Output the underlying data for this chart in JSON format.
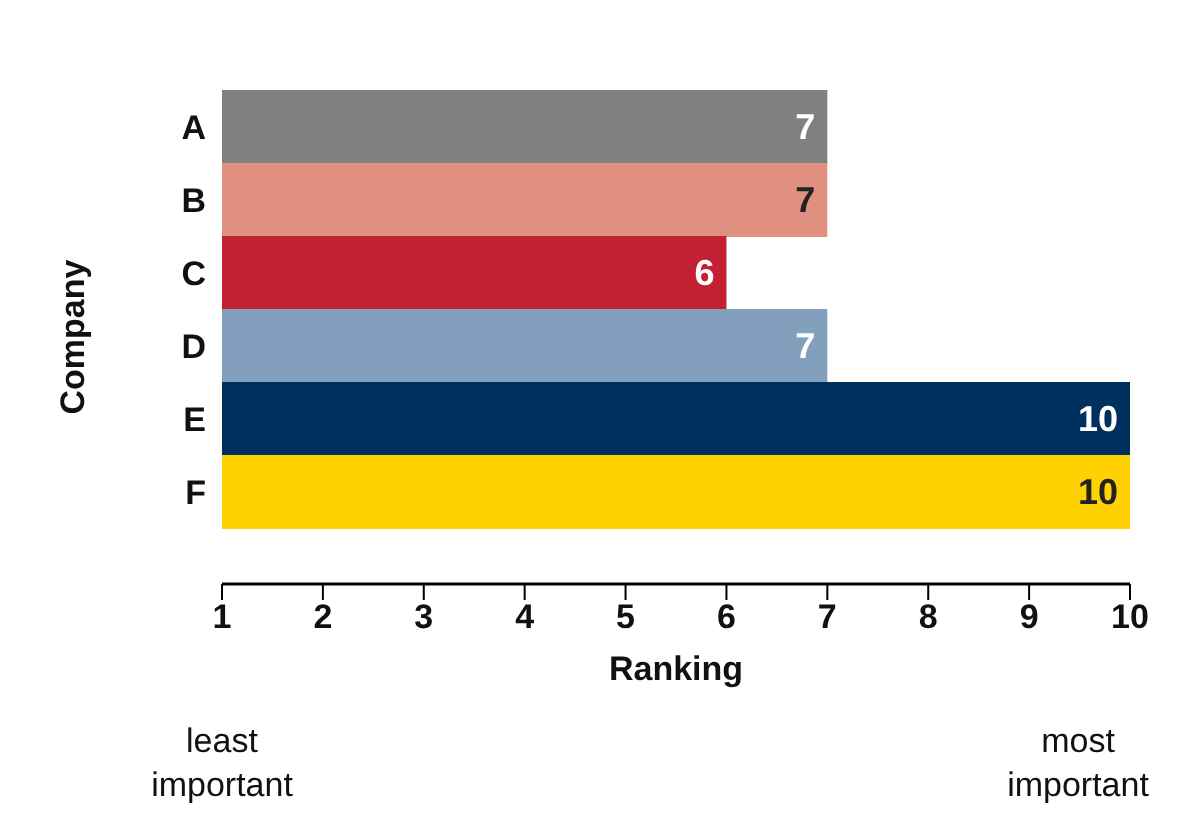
{
  "chart_data": {
    "type": "bar",
    "orientation": "horizontal",
    "ylabel": "Company",
    "xlabel": "Ranking",
    "categories": [
      "A",
      "B",
      "C",
      "D",
      "E",
      "F"
    ],
    "values": [
      7,
      7,
      6,
      7,
      10,
      10
    ],
    "colors": [
      "#808080",
      "#e09080",
      "#c32033",
      "#82a0bd",
      "#00305e",
      "#ffd100"
    ],
    "xlim": [
      1,
      10
    ],
    "xticks": [
      1,
      2,
      3,
      4,
      5,
      6,
      7,
      8,
      9,
      10
    ],
    "data_labels": true,
    "annotations": [
      "least important",
      "most important"
    ]
  }
}
